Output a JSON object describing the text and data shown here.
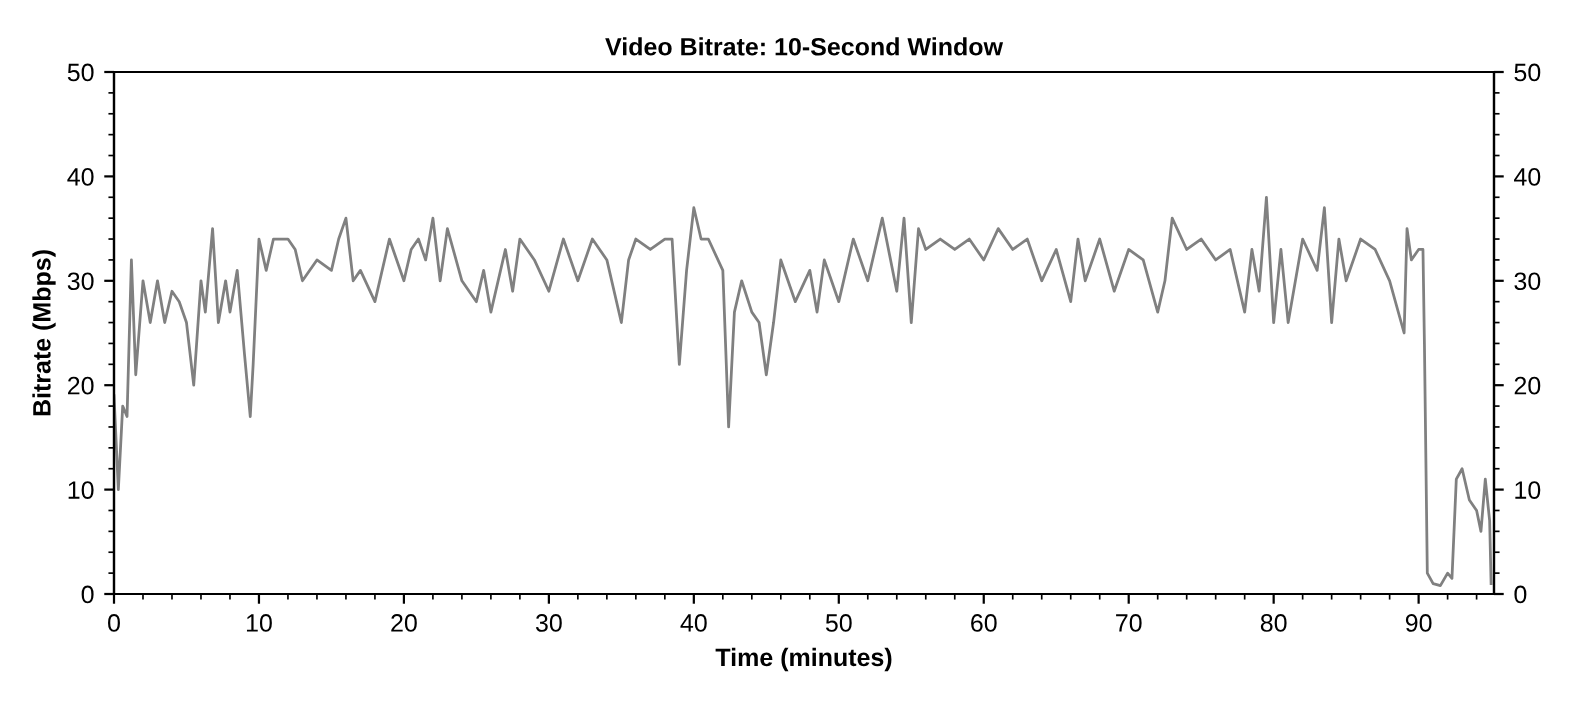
{
  "chart_data": {
    "type": "line",
    "title": "Video Bitrate: 10-Second Window",
    "xlabel": "Time (minutes)",
    "ylabel": "Bitrate (Mbps)",
    "x": [
      0,
      0.3,
      0.6,
      0.9,
      1.2,
      1.5,
      2,
      2.5,
      3,
      3.5,
      4,
      4.5,
      5,
      5.5,
      6,
      6.3,
      6.8,
      7.2,
      7.7,
      8,
      8.5,
      9,
      9.4,
      9.6,
      10,
      10.5,
      11,
      12,
      12.5,
      13,
      14,
      15,
      15.5,
      16,
      16.5,
      17,
      18,
      19,
      20,
      20.5,
      21,
      21.5,
      22,
      22.5,
      23,
      24,
      25,
      25.5,
      26,
      27,
      27.5,
      28,
      29,
      30,
      31,
      32,
      33,
      34,
      35,
      35.5,
      36,
      37,
      38,
      38.5,
      39,
      39.5,
      40,
      40.5,
      41,
      42,
      42.4,
      42.8,
      43.3,
      44,
      44.5,
      45,
      45.5,
      46,
      47,
      48,
      48.5,
      49,
      50,
      51,
      52,
      53,
      54,
      54.5,
      55,
      55.5,
      56,
      57,
      58,
      59,
      60,
      61,
      62,
      63,
      64,
      65,
      66,
      66.5,
      67,
      68,
      69,
      70,
      71,
      72,
      72.5,
      73,
      74,
      75,
      76,
      77,
      78,
      78.5,
      79,
      79.5,
      80,
      80.5,
      81,
      82,
      83,
      83.5,
      84,
      84.5,
      85,
      86,
      87,
      88,
      89,
      89.2,
      89.5,
      90,
      90.3,
      90.4,
      90.6,
      91,
      91.5,
      92,
      92.3,
      92.6,
      93,
      93.5,
      94,
      94.3,
      94.6,
      94.9,
      95
    ],
    "series": [
      {
        "color": "#808080",
        "values": [
          19,
          10,
          18,
          17,
          32,
          21,
          30,
          26,
          30,
          26,
          29,
          28,
          26,
          20,
          30,
          27,
          35,
          26,
          30,
          27,
          31,
          23,
          17,
          22,
          34,
          31,
          34,
          34,
          33,
          30,
          32,
          31,
          34,
          36,
          30,
          31,
          28,
          34,
          30,
          33,
          34,
          32,
          36,
          30,
          35,
          30,
          28,
          31,
          27,
          33,
          29,
          34,
          32,
          29,
          34,
          30,
          34,
          32,
          26,
          32,
          34,
          33,
          34,
          34,
          22,
          31,
          37,
          34,
          34,
          31,
          16,
          27,
          30,
          27,
          26,
          21,
          26,
          32,
          28,
          31,
          27,
          32,
          28,
          34,
          30,
          36,
          29,
          36,
          26,
          35,
          33,
          34,
          33,
          34,
          32,
          35,
          33,
          34,
          30,
          33,
          28,
          34,
          30,
          34,
          29,
          33,
          32,
          27,
          30,
          36,
          33,
          34,
          32,
          33,
          27,
          33,
          29,
          38,
          26,
          33,
          26,
          34,
          31,
          37,
          26,
          34,
          30,
          34,
          33,
          30,
          25,
          35,
          32,
          33,
          33,
          24,
          2,
          1,
          0.8,
          2,
          1.5,
          11,
          12,
          9,
          8,
          6,
          11,
          7,
          1
        ]
      }
    ],
    "xlim": [
      0,
      95.2
    ],
    "xticks": [
      0,
      10,
      20,
      30,
      40,
      50,
      60,
      70,
      80,
      90
    ],
    "ylim": [
      0,
      50
    ],
    "yticks": [
      0,
      10,
      20,
      30,
      40,
      50
    ],
    "y2lim": [
      0,
      50
    ],
    "y2ticks": [
      0,
      10,
      20,
      30,
      40,
      50
    ],
    "grid": false,
    "legend": false
  }
}
